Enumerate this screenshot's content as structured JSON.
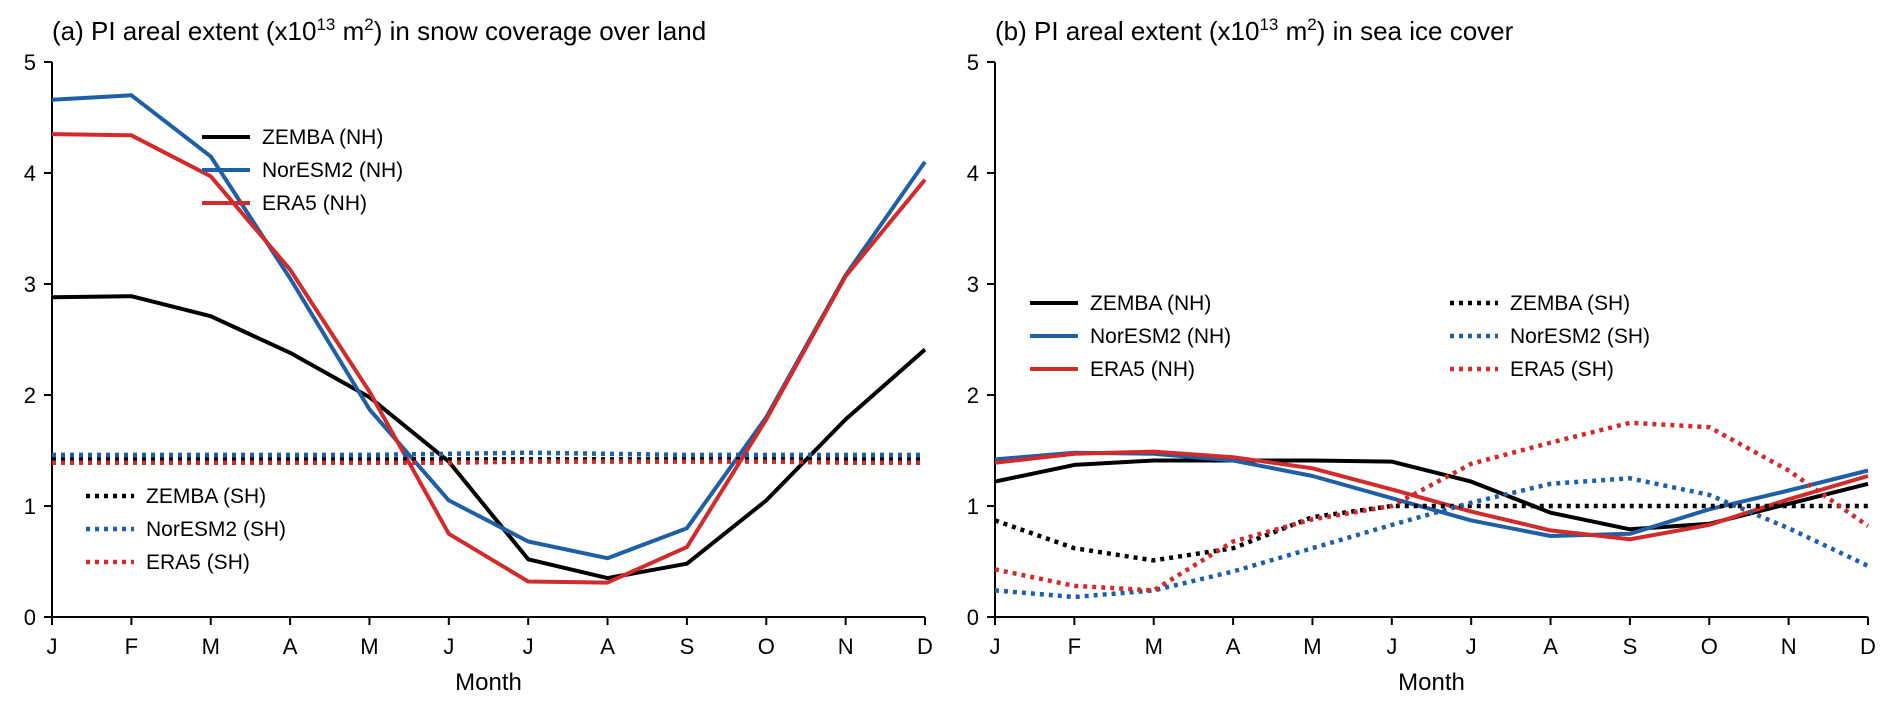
{
  "chart_data": [
    {
      "type": "line",
      "id": "a",
      "title_prefix": "(a) PI areal extent (x10",
      "title_exp": "13",
      "title_unit_pre": " m",
      "title_unit_exp": "2",
      "title_suffix": ") in snow coverage over land",
      "xlabel": "Month",
      "ylabel": "",
      "categories": [
        "J",
        "F",
        "M",
        "A",
        "M",
        "J",
        "J",
        "A",
        "S",
        "O",
        "N",
        "D"
      ],
      "yticks": [
        "0",
        "1",
        "2",
        "3",
        "4",
        "5"
      ],
      "ylim": [
        0,
        5
      ],
      "series": [
        {
          "name": "ZEMBA (NH)",
          "color": "#000000",
          "dashed": false,
          "values": [
            2.88,
            2.89,
            2.71,
            2.38,
            1.98,
            1.4,
            0.52,
            0.35,
            0.48,
            1.05,
            1.78,
            2.41
          ]
        },
        {
          "name": "NorESM2 (NH)",
          "color": "#1f5fa6",
          "dashed": false,
          "values": [
            4.66,
            4.7,
            4.15,
            3.05,
            1.87,
            1.05,
            0.68,
            0.53,
            0.8,
            1.8,
            3.08,
            4.1
          ]
        },
        {
          "name": "ERA5 (NH)",
          "color": "#d12b2b",
          "dashed": false,
          "values": [
            4.35,
            4.34,
            3.97,
            3.13,
            2.03,
            0.75,
            0.32,
            0.31,
            0.63,
            1.78,
            3.07,
            3.94
          ]
        },
        {
          "name": "ZEMBA (SH)",
          "color": "#000000",
          "dashed": true,
          "values": [
            1.42,
            1.42,
            1.42,
            1.42,
            1.42,
            1.42,
            1.42,
            1.42,
            1.42,
            1.42,
            1.42,
            1.42
          ]
        },
        {
          "name": "NorESM2 (SH)",
          "color": "#1f5fa6",
          "dashed": true,
          "values": [
            1.46,
            1.46,
            1.46,
            1.46,
            1.46,
            1.47,
            1.48,
            1.47,
            1.46,
            1.46,
            1.46,
            1.46
          ]
        },
        {
          "name": "ERA5 (SH)",
          "color": "#d12b2b",
          "dashed": true,
          "values": [
            1.39,
            1.39,
            1.39,
            1.39,
            1.39,
            1.39,
            1.4,
            1.4,
            1.4,
            1.4,
            1.39,
            1.39
          ]
        }
      ],
      "legends": [
        {
          "items": [
            0,
            1,
            2
          ],
          "placement": "upper-center"
        },
        {
          "items": [
            3,
            4,
            5
          ],
          "placement": "lower-left"
        }
      ]
    },
    {
      "type": "line",
      "id": "b",
      "title_prefix": "(b) PI areal extent (x10",
      "title_exp": "13",
      "title_unit_pre": " m",
      "title_unit_exp": "2",
      "title_suffix": ") in sea ice cover",
      "xlabel": "Month",
      "ylabel": "",
      "categories": [
        "J",
        "F",
        "M",
        "A",
        "M",
        "J",
        "J",
        "A",
        "S",
        "O",
        "N",
        "D"
      ],
      "yticks": [
        "0",
        "1",
        "2",
        "3",
        "4",
        "5"
      ],
      "ylim": [
        0,
        5
      ],
      "series": [
        {
          "name": "ZEMBA (NH)",
          "color": "#000000",
          "dashed": false,
          "values": [
            1.22,
            1.37,
            1.41,
            1.41,
            1.41,
            1.4,
            1.22,
            0.94,
            0.79,
            0.84,
            1.02,
            1.2
          ]
        },
        {
          "name": "NorESM2 (NH)",
          "color": "#1f5fa6",
          "dashed": false,
          "values": [
            1.42,
            1.48,
            1.47,
            1.41,
            1.27,
            1.07,
            0.87,
            0.73,
            0.75,
            0.97,
            1.14,
            1.32
          ]
        },
        {
          "name": "ERA5 (NH)",
          "color": "#d12b2b",
          "dashed": false,
          "values": [
            1.39,
            1.47,
            1.49,
            1.44,
            1.34,
            1.15,
            0.95,
            0.78,
            0.7,
            0.83,
            1.06,
            1.27
          ]
        },
        {
          "name": "ZEMBA (SH)",
          "color": "#000000",
          "dashed": true,
          "values": [
            0.87,
            0.62,
            0.51,
            0.62,
            0.9,
            1.0,
            1.0,
            1.0,
            1.0,
            1.0,
            1.0,
            1.0
          ]
        },
        {
          "name": "NorESM2 (SH)",
          "color": "#1f5fa6",
          "dashed": true,
          "values": [
            0.24,
            0.18,
            0.24,
            0.41,
            0.62,
            0.83,
            1.03,
            1.2,
            1.25,
            1.1,
            0.8,
            0.46
          ]
        },
        {
          "name": "ERA5 (SH)",
          "color": "#d12b2b",
          "dashed": true,
          "values": [
            0.43,
            0.28,
            0.24,
            0.68,
            0.88,
            1.0,
            1.38,
            1.57,
            1.75,
            1.71,
            1.32,
            0.82
          ]
        }
      ],
      "legends": [
        {
          "items": [
            0,
            1,
            2
          ],
          "placement": "middle-left"
        },
        {
          "items": [
            3,
            4,
            5
          ],
          "placement": "middle-right"
        }
      ]
    }
  ]
}
